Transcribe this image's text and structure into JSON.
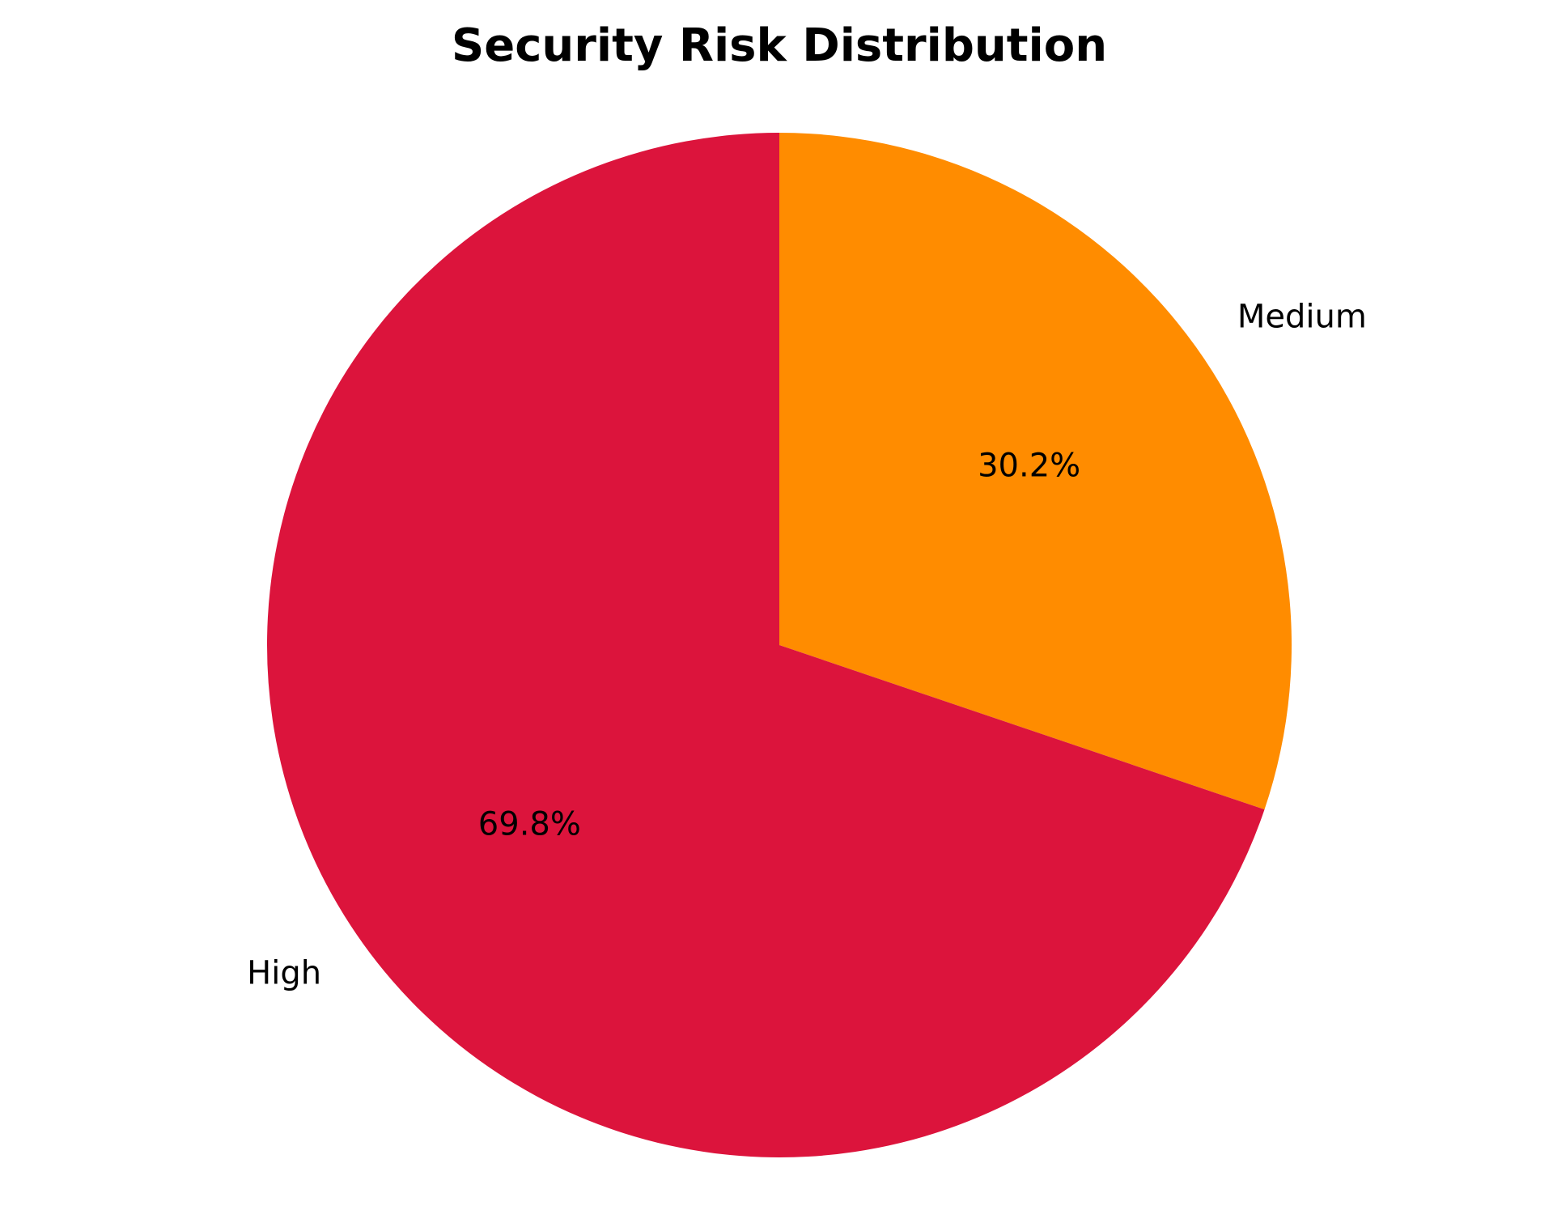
{
  "chart_data": {
    "type": "pie",
    "title": "Security Risk Distribution",
    "start_angle_deg": 90,
    "direction": "clockwise",
    "slices": [
      {
        "label": "Medium",
        "value": 30.2,
        "pct_label": "30.2%",
        "color": "#FF8C00"
      },
      {
        "label": "High",
        "value": 69.8,
        "pct_label": "69.8%",
        "color": "#DC143C"
      }
    ]
  }
}
